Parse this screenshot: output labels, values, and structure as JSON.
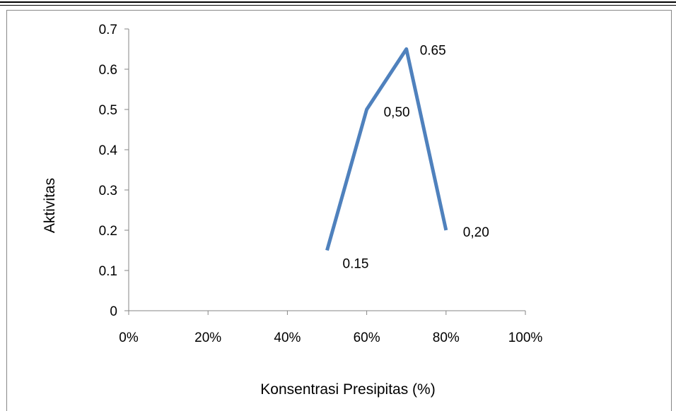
{
  "chart_data": {
    "type": "line",
    "title": "",
    "xlabel": "Konsentrasi Presipitas (%)",
    "ylabel": "Aktivitas",
    "xlim": [
      0,
      100
    ],
    "ylim": [
      0,
      0.7
    ],
    "x_ticks": [
      "0%",
      "20%",
      "40%",
      "60%",
      "80%",
      "100%"
    ],
    "y_ticks": [
      "0",
      "0.1",
      "0.2",
      "0.3",
      "0.4",
      "0.5",
      "0.6",
      "0.7"
    ],
    "grid": false,
    "legend": "none",
    "series": [
      {
        "color": "#4F81BD",
        "x": [
          50,
          60,
          70,
          80
        ],
        "values": [
          0.15,
          0.5,
          0.65,
          0.2
        ],
        "data_labels": [
          "0.15",
          "0,50",
          "0.65",
          "0,20"
        ]
      }
    ]
  }
}
